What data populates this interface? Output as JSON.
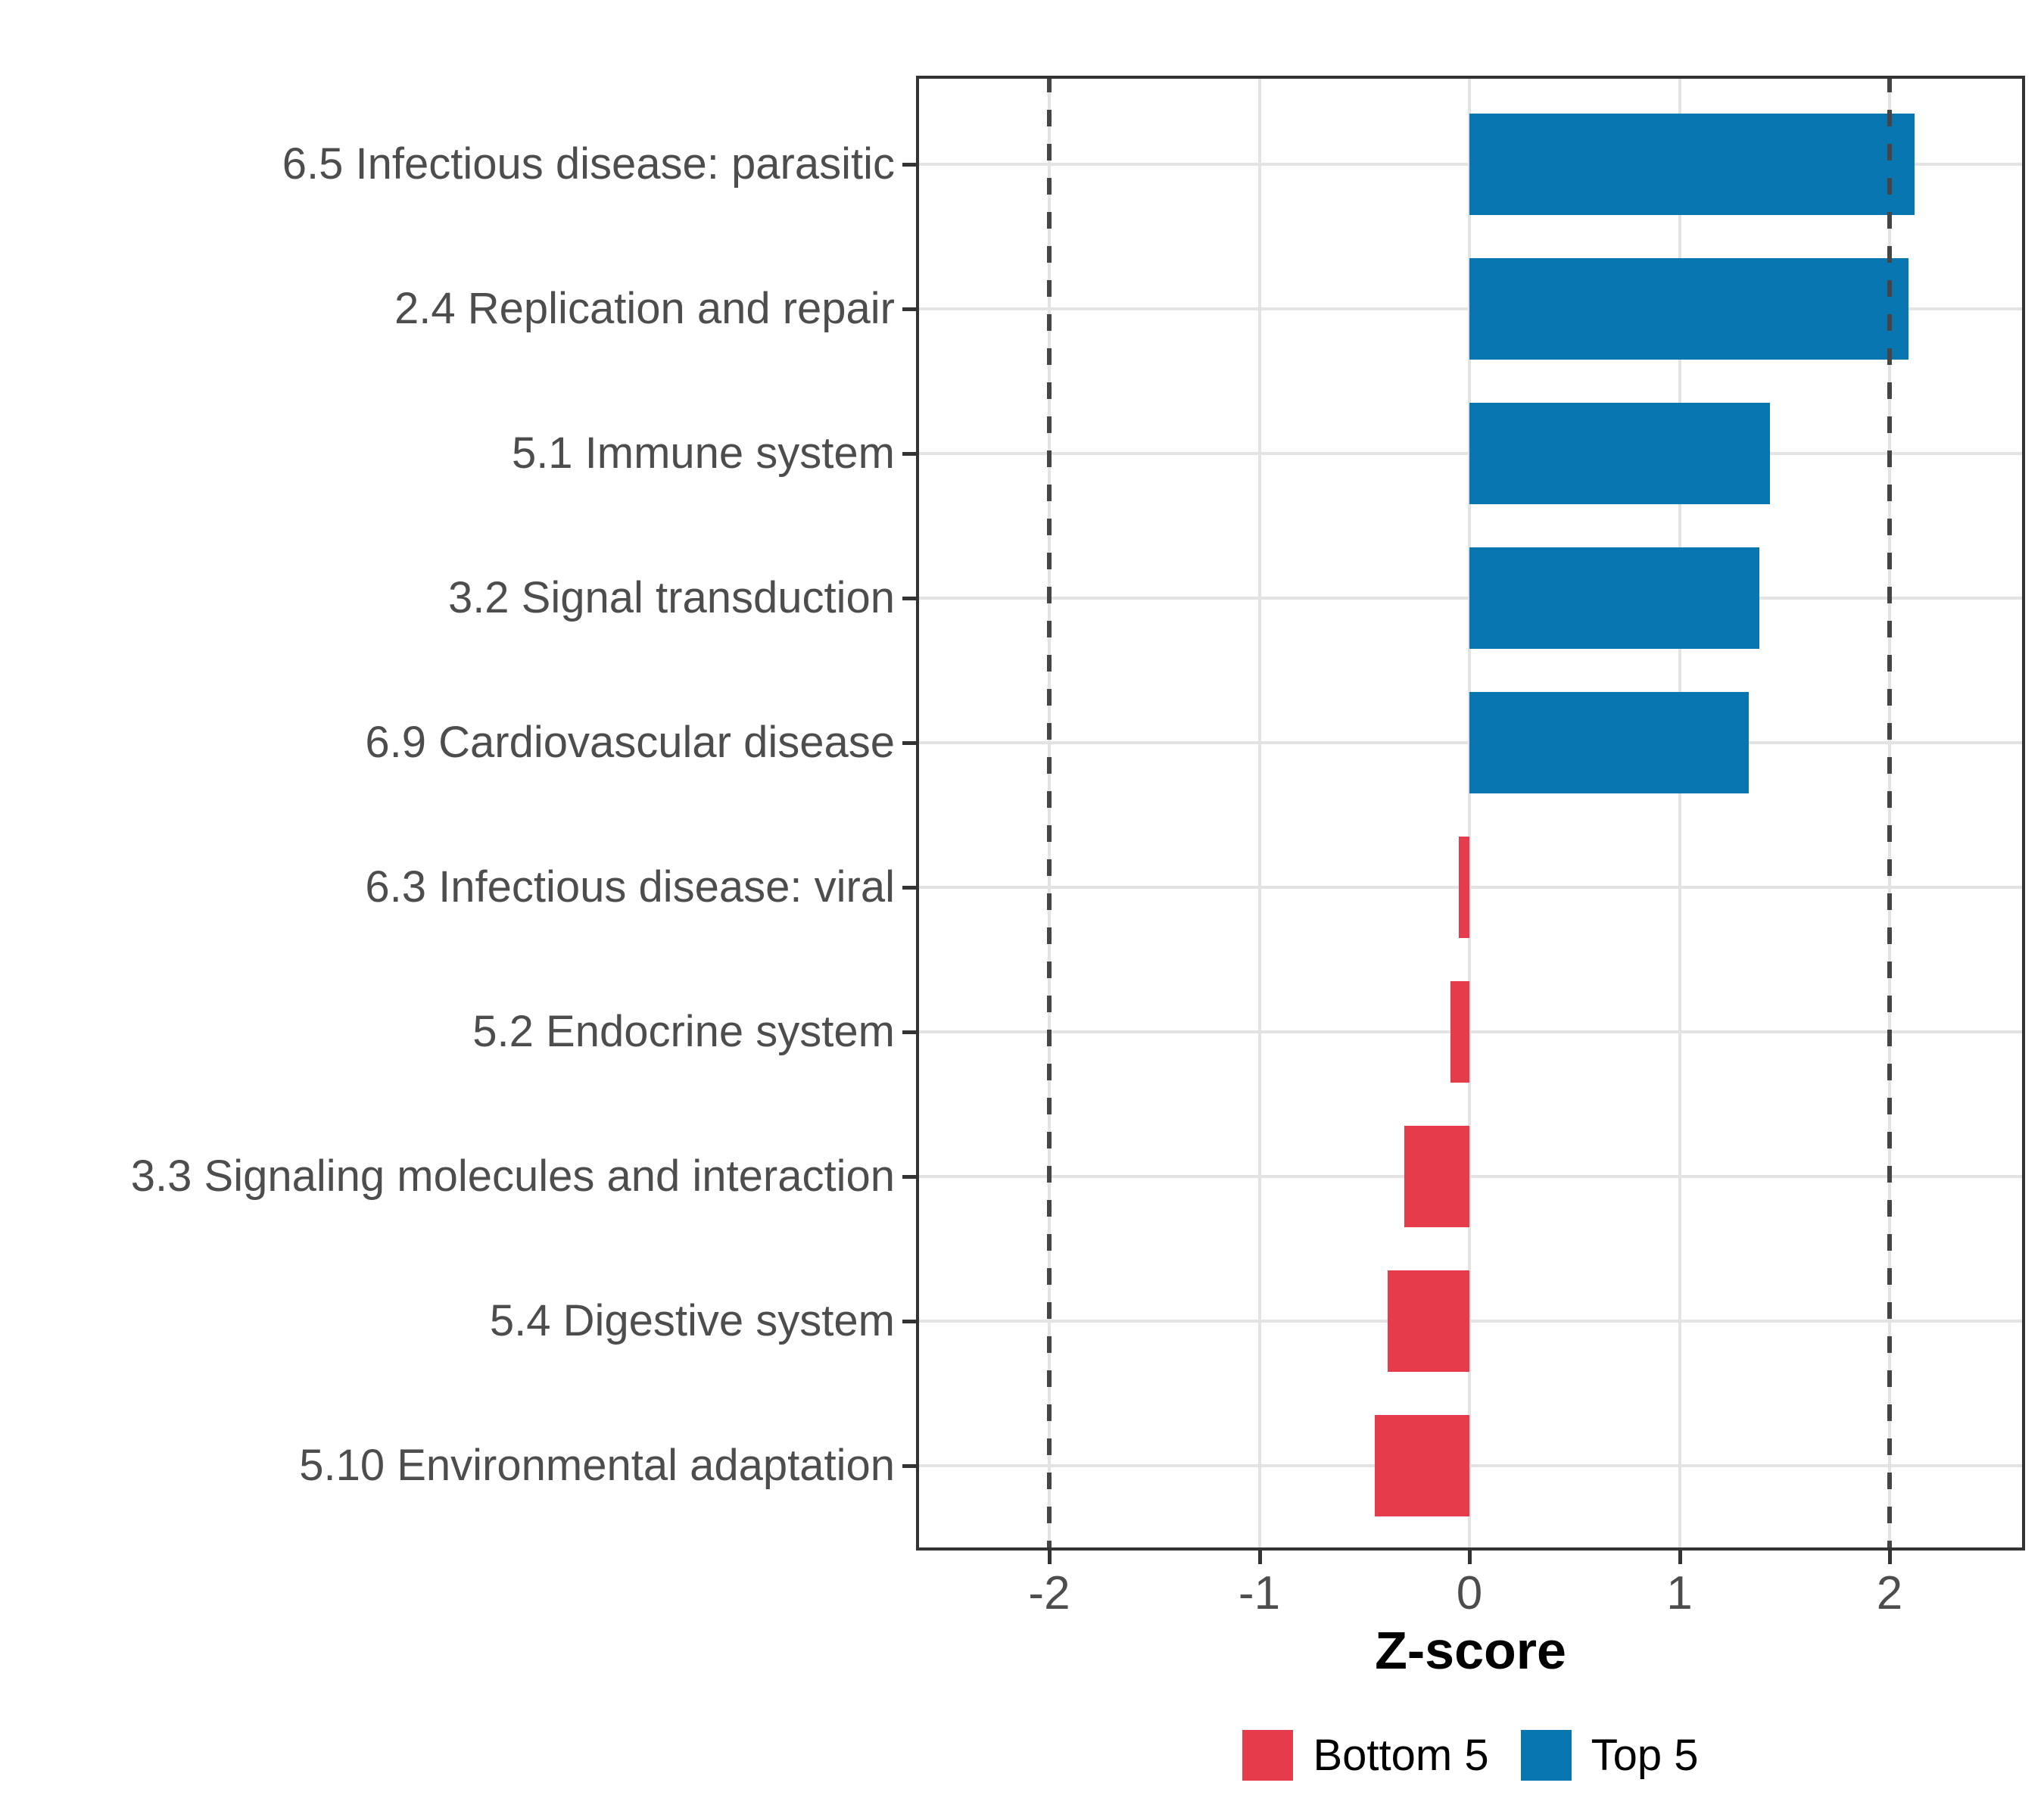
{
  "chart_data": {
    "type": "bar",
    "orientation": "horizontal",
    "title": "",
    "xlabel": "Z-score",
    "ylabel": "",
    "categories": [
      "6.5 Infectious disease: parasitic",
      "2.4 Replication and repair",
      "5.1 Immune system",
      "3.2 Signal transduction",
      "6.9 Cardiovascular disease",
      "6.3 Infectious disease: viral",
      "5.2 Endocrine system",
      "3.3 Signaling molecules and interaction",
      "5.4 Digestive system",
      "5.10 Environmental adaptation"
    ],
    "values": [
      2.12,
      2.09,
      1.43,
      1.38,
      1.33,
      -0.05,
      -0.09,
      -0.31,
      -0.39,
      -0.45
    ],
    "groups": [
      "Top 5",
      "Top 5",
      "Top 5",
      "Top 5",
      "Top 5",
      "Bottom 5",
      "Bottom 5",
      "Bottom 5",
      "Bottom 5",
      "Bottom 5"
    ],
    "x_ticks": [
      "-2",
      "-1",
      "0",
      "1",
      "2"
    ],
    "x_tick_values": [
      -2,
      -1,
      0,
      1,
      2
    ],
    "xlim": [
      -2.64,
      2.65
    ],
    "reference_lines": [
      -2,
      2
    ],
    "grid": true,
    "legend_position": "bottom",
    "legend": [
      {
        "label": "Bottom 5",
        "color": "#e63b4b"
      },
      {
        "label": "Top 5",
        "color": "#0877b1"
      }
    ],
    "colors": {
      "top5": "#0877b1",
      "bottom5": "#e63b4b",
      "grid": "#e3e3e3",
      "reference_line": "#454545",
      "panel_border": "#333333",
      "tick": "#333333",
      "tick_label": "#4d4d4d",
      "axis_title": "#000000"
    }
  }
}
